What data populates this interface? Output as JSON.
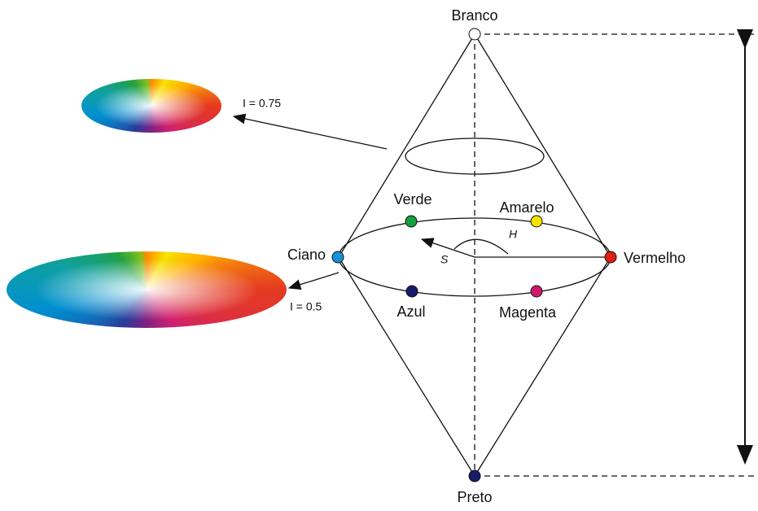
{
  "title_top": "Branco",
  "title_bottom": "Preto",
  "colors": {
    "green": "Verde",
    "yellow": "Amarelo",
    "cyan": "Ciano",
    "red": "Vermelho",
    "blue": "Azul",
    "magenta": "Magenta"
  },
  "intensity_labels": {
    "upper": "I = 0.75",
    "middle": "I = 0.5"
  },
  "angle_labels": {
    "hue": "H",
    "saturation": "S"
  }
}
